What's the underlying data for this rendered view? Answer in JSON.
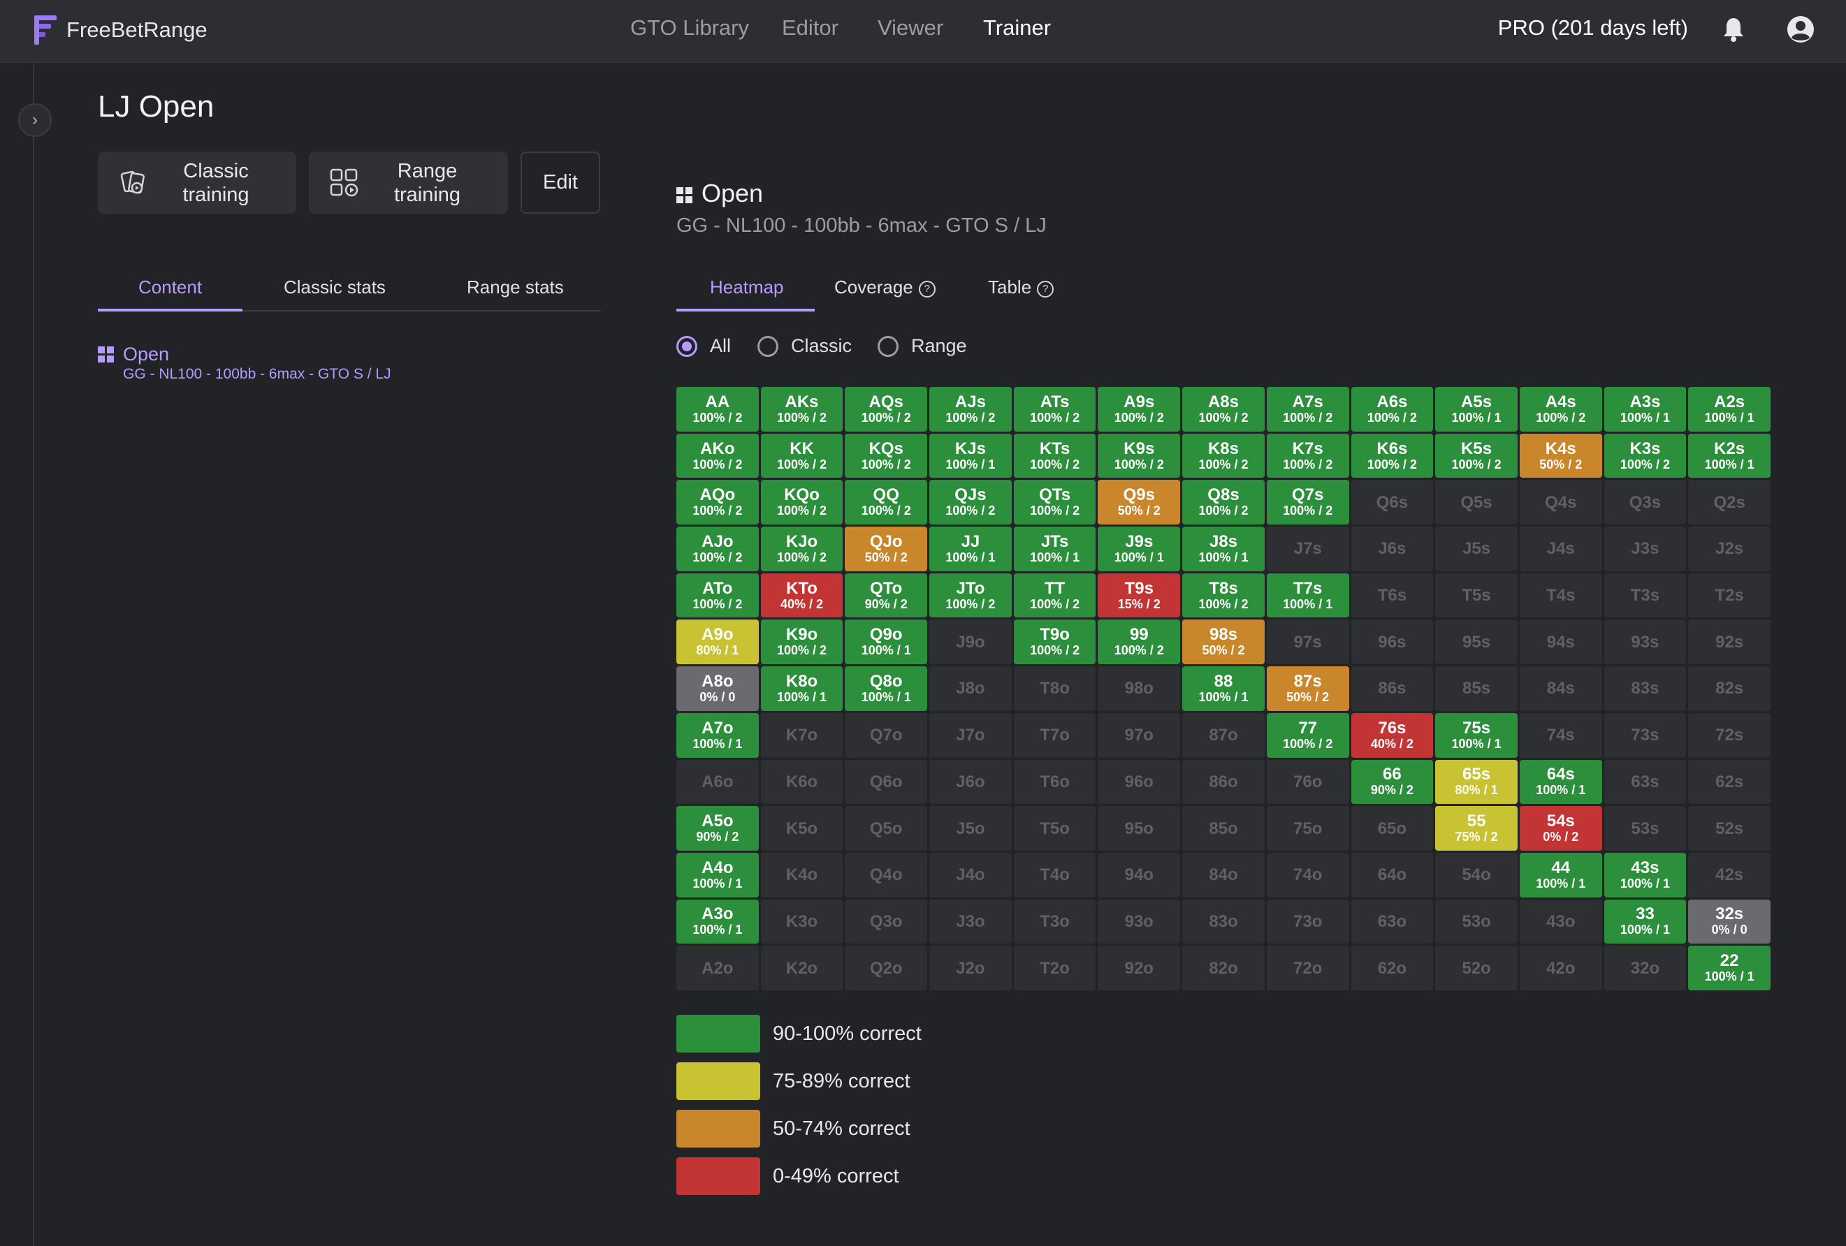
{
  "app": {
    "name": "FreeBetRange"
  },
  "nav": {
    "items": [
      "GTO Library",
      "Editor",
      "Viewer",
      "Trainer"
    ],
    "active": "Trainer"
  },
  "account": {
    "plan": "PRO (201 days left)",
    "icons": [
      "bell-icon",
      "user-icon"
    ]
  },
  "page": {
    "title": "LJ Open"
  },
  "actions": {
    "classic": [
      "Classic",
      "training"
    ],
    "range": [
      "Range",
      "training"
    ],
    "edit": "Edit"
  },
  "left_tabs": {
    "items": [
      "Content",
      "Classic stats",
      "Range stats"
    ],
    "active": "Content"
  },
  "content_item": {
    "name": "Open",
    "subtitle": "GG - NL100 - 100bb - 6max - GTO S / LJ"
  },
  "range_header": {
    "title": "Open",
    "subtitle": "GG - NL100 - 100bb - 6max - GTO S / LJ"
  },
  "right_tabs": {
    "items": [
      "Heatmap",
      "Coverage",
      "Table"
    ],
    "active": "Heatmap"
  },
  "filter": {
    "options": [
      "All",
      "Classic",
      "Range"
    ],
    "selected": "All"
  },
  "colors": {
    "accent": "#b79cff",
    "green": "#2c8f3c",
    "yellow": "#c9c232",
    "orange": "#c9862a",
    "red": "#c33434",
    "gray": "#6a6b6e",
    "empty": "#2d2f33"
  },
  "grid": {
    "rows": [
      [
        [
          "AA",
          "100% / 2",
          "green"
        ],
        [
          "AKs",
          "100% / 2",
          "green"
        ],
        [
          "AQs",
          "100% / 2",
          "green"
        ],
        [
          "AJs",
          "100% / 2",
          "green"
        ],
        [
          "ATs",
          "100% / 2",
          "green"
        ],
        [
          "A9s",
          "100% / 2",
          "green"
        ],
        [
          "A8s",
          "100% / 2",
          "green"
        ],
        [
          "A7s",
          "100% / 2",
          "green"
        ],
        [
          "A6s",
          "100% / 2",
          "green"
        ],
        [
          "A5s",
          "100% / 1",
          "green"
        ],
        [
          "A4s",
          "100% / 2",
          "green"
        ],
        [
          "A3s",
          "100% / 1",
          "green"
        ],
        [
          "A2s",
          "100% / 1",
          "green"
        ]
      ],
      [
        [
          "AKo",
          "100% / 2",
          "green"
        ],
        [
          "KK",
          "100% / 2",
          "green"
        ],
        [
          "KQs",
          "100% / 2",
          "green"
        ],
        [
          "KJs",
          "100% / 1",
          "green"
        ],
        [
          "KTs",
          "100% / 2",
          "green"
        ],
        [
          "K9s",
          "100% / 2",
          "green"
        ],
        [
          "K8s",
          "100% / 2",
          "green"
        ],
        [
          "K7s",
          "100% / 2",
          "green"
        ],
        [
          "K6s",
          "100% / 2",
          "green"
        ],
        [
          "K5s",
          "100% / 2",
          "green"
        ],
        [
          "K4s",
          "50% / 2",
          "orange"
        ],
        [
          "K3s",
          "100% / 2",
          "green"
        ],
        [
          "K2s",
          "100% / 1",
          "green"
        ]
      ],
      [
        [
          "AQo",
          "100% / 2",
          "green"
        ],
        [
          "KQo",
          "100% / 2",
          "green"
        ],
        [
          "QQ",
          "100% / 2",
          "green"
        ],
        [
          "QJs",
          "100% / 2",
          "green"
        ],
        [
          "QTs",
          "100% / 2",
          "green"
        ],
        [
          "Q9s",
          "50% / 2",
          "orange"
        ],
        [
          "Q8s",
          "100% / 2",
          "green"
        ],
        [
          "Q7s",
          "100% / 2",
          "green"
        ],
        [
          "Q6s",
          "",
          "empty"
        ],
        [
          "Q5s",
          "",
          "empty"
        ],
        [
          "Q4s",
          "",
          "empty"
        ],
        [
          "Q3s",
          "",
          "empty"
        ],
        [
          "Q2s",
          "",
          "empty"
        ]
      ],
      [
        [
          "AJo",
          "100% / 2",
          "green"
        ],
        [
          "KJo",
          "100% / 2",
          "green"
        ],
        [
          "QJo",
          "50% / 2",
          "orange"
        ],
        [
          "JJ",
          "100% / 1",
          "green"
        ],
        [
          "JTs",
          "100% / 1",
          "green"
        ],
        [
          "J9s",
          "100% / 1",
          "green"
        ],
        [
          "J8s",
          "100% / 1",
          "green"
        ],
        [
          "J7s",
          "",
          "empty"
        ],
        [
          "J6s",
          "",
          "empty"
        ],
        [
          "J5s",
          "",
          "empty"
        ],
        [
          "J4s",
          "",
          "empty"
        ],
        [
          "J3s",
          "",
          "empty"
        ],
        [
          "J2s",
          "",
          "empty"
        ]
      ],
      [
        [
          "ATo",
          "100% / 2",
          "green"
        ],
        [
          "KTo",
          "40% / 2",
          "red"
        ],
        [
          "QTo",
          "90% / 2",
          "green"
        ],
        [
          "JTo",
          "100% / 2",
          "green"
        ],
        [
          "TT",
          "100% / 2",
          "green"
        ],
        [
          "T9s",
          "15% / 2",
          "red"
        ],
        [
          "T8s",
          "100% / 2",
          "green"
        ],
        [
          "T7s",
          "100% / 1",
          "green"
        ],
        [
          "T6s",
          "",
          "empty"
        ],
        [
          "T5s",
          "",
          "empty"
        ],
        [
          "T4s",
          "",
          "empty"
        ],
        [
          "T3s",
          "",
          "empty"
        ],
        [
          "T2s",
          "",
          "empty"
        ]
      ],
      [
        [
          "A9o",
          "80% / 1",
          "yellow"
        ],
        [
          "K9o",
          "100% / 2",
          "green"
        ],
        [
          "Q9o",
          "100% / 1",
          "green"
        ],
        [
          "J9o",
          "",
          "empty"
        ],
        [
          "T9o",
          "100% / 2",
          "green"
        ],
        [
          "99",
          "100% / 2",
          "green"
        ],
        [
          "98s",
          "50% / 2",
          "orange"
        ],
        [
          "97s",
          "",
          "empty"
        ],
        [
          "96s",
          "",
          "empty"
        ],
        [
          "95s",
          "",
          "empty"
        ],
        [
          "94s",
          "",
          "empty"
        ],
        [
          "93s",
          "",
          "empty"
        ],
        [
          "92s",
          "",
          "empty"
        ]
      ],
      [
        [
          "A8o",
          "0% / 0",
          "gray"
        ],
        [
          "K8o",
          "100% / 1",
          "green"
        ],
        [
          "Q8o",
          "100% / 1",
          "green"
        ],
        [
          "J8o",
          "",
          "empty"
        ],
        [
          "T8o",
          "",
          "empty"
        ],
        [
          "98o",
          "",
          "empty"
        ],
        [
          "88",
          "100% / 1",
          "green"
        ],
        [
          "87s",
          "50% / 2",
          "orange"
        ],
        [
          "86s",
          "",
          "empty"
        ],
        [
          "85s",
          "",
          "empty"
        ],
        [
          "84s",
          "",
          "empty"
        ],
        [
          "83s",
          "",
          "empty"
        ],
        [
          "82s",
          "",
          "empty"
        ]
      ],
      [
        [
          "A7o",
          "100% / 1",
          "green"
        ],
        [
          "K7o",
          "",
          "empty"
        ],
        [
          "Q7o",
          "",
          "empty"
        ],
        [
          "J7o",
          "",
          "empty"
        ],
        [
          "T7o",
          "",
          "empty"
        ],
        [
          "97o",
          "",
          "empty"
        ],
        [
          "87o",
          "",
          "empty"
        ],
        [
          "77",
          "100% / 2",
          "green"
        ],
        [
          "76s",
          "40% / 2",
          "red"
        ],
        [
          "75s",
          "100% / 1",
          "green"
        ],
        [
          "74s",
          "",
          "empty"
        ],
        [
          "73s",
          "",
          "empty"
        ],
        [
          "72s",
          "",
          "empty"
        ]
      ],
      [
        [
          "A6o",
          "",
          "empty"
        ],
        [
          "K6o",
          "",
          "empty"
        ],
        [
          "Q6o",
          "",
          "empty"
        ],
        [
          "J6o",
          "",
          "empty"
        ],
        [
          "T6o",
          "",
          "empty"
        ],
        [
          "96o",
          "",
          "empty"
        ],
        [
          "86o",
          "",
          "empty"
        ],
        [
          "76o",
          "",
          "empty"
        ],
        [
          "66",
          "90% / 2",
          "green"
        ],
        [
          "65s",
          "80% / 1",
          "yellow"
        ],
        [
          "64s",
          "100% / 1",
          "green"
        ],
        [
          "63s",
          "",
          "empty"
        ],
        [
          "62s",
          "",
          "empty"
        ]
      ],
      [
        [
          "A5o",
          "90% / 2",
          "green"
        ],
        [
          "K5o",
          "",
          "empty"
        ],
        [
          "Q5o",
          "",
          "empty"
        ],
        [
          "J5o",
          "",
          "empty"
        ],
        [
          "T5o",
          "",
          "empty"
        ],
        [
          "95o",
          "",
          "empty"
        ],
        [
          "85o",
          "",
          "empty"
        ],
        [
          "75o",
          "",
          "empty"
        ],
        [
          "65o",
          "",
          "empty"
        ],
        [
          "55",
          "75% / 2",
          "yellow"
        ],
        [
          "54s",
          "0% / 2",
          "red"
        ],
        [
          "53s",
          "",
          "empty"
        ],
        [
          "52s",
          "",
          "empty"
        ]
      ],
      [
        [
          "A4o",
          "100% / 1",
          "green"
        ],
        [
          "K4o",
          "",
          "empty"
        ],
        [
          "Q4o",
          "",
          "empty"
        ],
        [
          "J4o",
          "",
          "empty"
        ],
        [
          "T4o",
          "",
          "empty"
        ],
        [
          "94o",
          "",
          "empty"
        ],
        [
          "84o",
          "",
          "empty"
        ],
        [
          "74o",
          "",
          "empty"
        ],
        [
          "64o",
          "",
          "empty"
        ],
        [
          "54o",
          "",
          "empty"
        ],
        [
          "44",
          "100% / 1",
          "green"
        ],
        [
          "43s",
          "100% / 1",
          "green"
        ],
        [
          "42s",
          "",
          "empty"
        ]
      ],
      [
        [
          "A3o",
          "100% / 1",
          "green"
        ],
        [
          "K3o",
          "",
          "empty"
        ],
        [
          "Q3o",
          "",
          "empty"
        ],
        [
          "J3o",
          "",
          "empty"
        ],
        [
          "T3o",
          "",
          "empty"
        ],
        [
          "93o",
          "",
          "empty"
        ],
        [
          "83o",
          "",
          "empty"
        ],
        [
          "73o",
          "",
          "empty"
        ],
        [
          "63o",
          "",
          "empty"
        ],
        [
          "53o",
          "",
          "empty"
        ],
        [
          "43o",
          "",
          "empty"
        ],
        [
          "33",
          "100% / 1",
          "green"
        ],
        [
          "32s",
          "0% / 0",
          "gray"
        ]
      ],
      [
        [
          "A2o",
          "",
          "empty"
        ],
        [
          "K2o",
          "",
          "empty"
        ],
        [
          "Q2o",
          "",
          "empty"
        ],
        [
          "J2o",
          "",
          "empty"
        ],
        [
          "T2o",
          "",
          "empty"
        ],
        [
          "92o",
          "",
          "empty"
        ],
        [
          "82o",
          "",
          "empty"
        ],
        [
          "72o",
          "",
          "empty"
        ],
        [
          "62o",
          "",
          "empty"
        ],
        [
          "52o",
          "",
          "empty"
        ],
        [
          "42o",
          "",
          "empty"
        ],
        [
          "32o",
          "",
          "empty"
        ],
        [
          "22",
          "100% / 1",
          "green"
        ]
      ]
    ]
  },
  "legend": [
    {
      "label": "90-100% correct",
      "color": "green"
    },
    {
      "label": "75-89% correct",
      "color": "yellow"
    },
    {
      "label": "50-74% correct",
      "color": "orange"
    },
    {
      "label": "0-49% correct",
      "color": "red"
    }
  ]
}
